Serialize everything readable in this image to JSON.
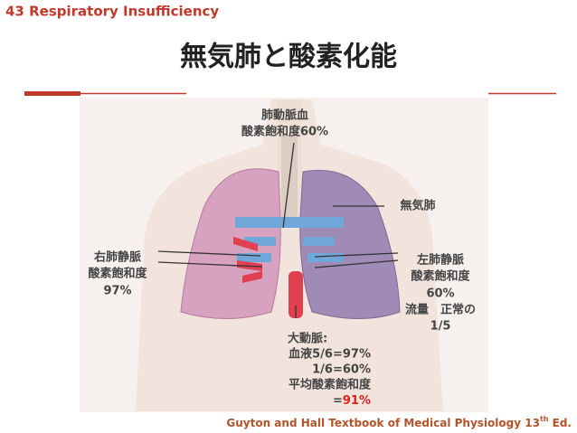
{
  "header": {
    "topic": "43 Respiratory Insufficiency",
    "title": "無気肺と酸素化能"
  },
  "labels": {
    "pulmonary_artery": [
      "肺動脈血",
      "酸素飽和度60%"
    ],
    "atelectasis": "無気肺",
    "right_vein": [
      "右肺静脈",
      "酸素飽和度",
      "97%"
    ],
    "left_vein": [
      "左肺静脈",
      "酸素飽和度",
      "60%",
      "流量　正常の",
      "1/5"
    ],
    "aorta": {
      "lines": [
        "大動脈:",
        "血液5/6=97%",
        "1/6=60%",
        "平均酸素飽和度"
      ],
      "last_prefix": "=",
      "last_value": "91%"
    }
  },
  "footer": {
    "text": "Guyton and Hall Textbook of Medical Physiology 13",
    "superscript": "th",
    "suffix": " Ed."
  }
}
